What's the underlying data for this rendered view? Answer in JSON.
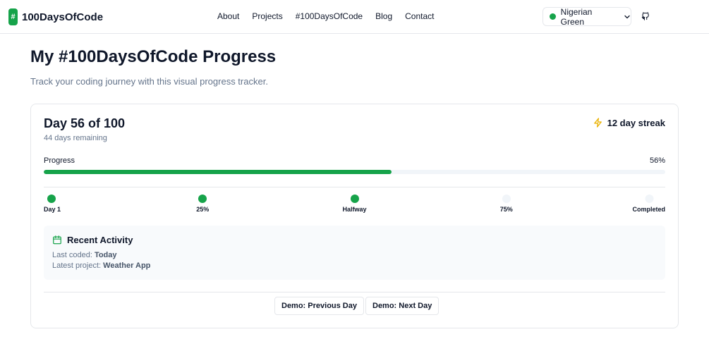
{
  "header": {
    "logo_badge": "#",
    "logo_text": "100DaysOfCode",
    "nav": [
      "About",
      "Projects",
      "#100DaysOfCode",
      "Blog",
      "Contact"
    ],
    "theme": {
      "label": "Nigerian Green",
      "color": "#16a34a"
    }
  },
  "page": {
    "title": "My #100DaysOfCode Progress",
    "subtitle": "Track your coding journey with this visual progress tracker."
  },
  "tracker": {
    "day_title": "Day 56 of 100",
    "days_remaining": "44 days remaining",
    "streak": "12 day streak",
    "progress_label": "Progress",
    "progress_text": "56%",
    "progress_value": 0.56,
    "milestones": [
      {
        "label": "Day 1",
        "reached": true
      },
      {
        "label": "25%",
        "reached": true
      },
      {
        "label": "Halfway",
        "reached": true
      },
      {
        "label": "75%",
        "reached": false
      },
      {
        "label": "Completed",
        "reached": false
      }
    ],
    "activity": {
      "heading": "Recent Activity",
      "last_coded_label": "Last coded:",
      "last_coded_value": "Today",
      "latest_project_label": "Latest project:",
      "latest_project_value": "Weather App"
    },
    "buttons": {
      "prev": "Demo: Previous Day",
      "next": "Demo: Next Day"
    }
  },
  "colors": {
    "accent": "#16a34a",
    "streak_icon": "#eab308"
  },
  "icons": {
    "streak": "lightning-icon",
    "activity": "calendar-icon",
    "repo": "github-icon",
    "dropdown": "chevron-down-icon"
  }
}
